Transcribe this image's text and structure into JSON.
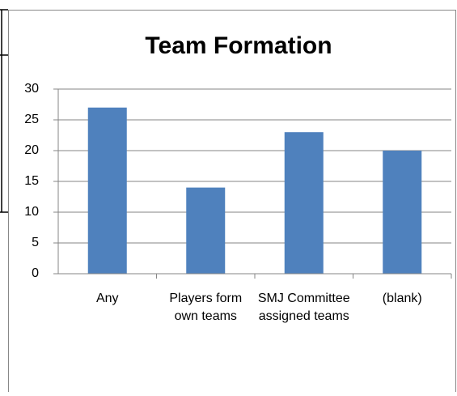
{
  "chart_data": {
    "type": "bar",
    "title": "Team Formation",
    "categories": [
      "Any",
      "Players form own teams",
      "SMJ Committee assigned teams",
      "(blank)"
    ],
    "values": [
      27,
      14,
      23,
      20
    ],
    "color": "#4f81bd",
    "ylim": [
      0,
      30
    ],
    "yticks": [
      0,
      5,
      10,
      15,
      20,
      25,
      30
    ],
    "grid": true
  }
}
